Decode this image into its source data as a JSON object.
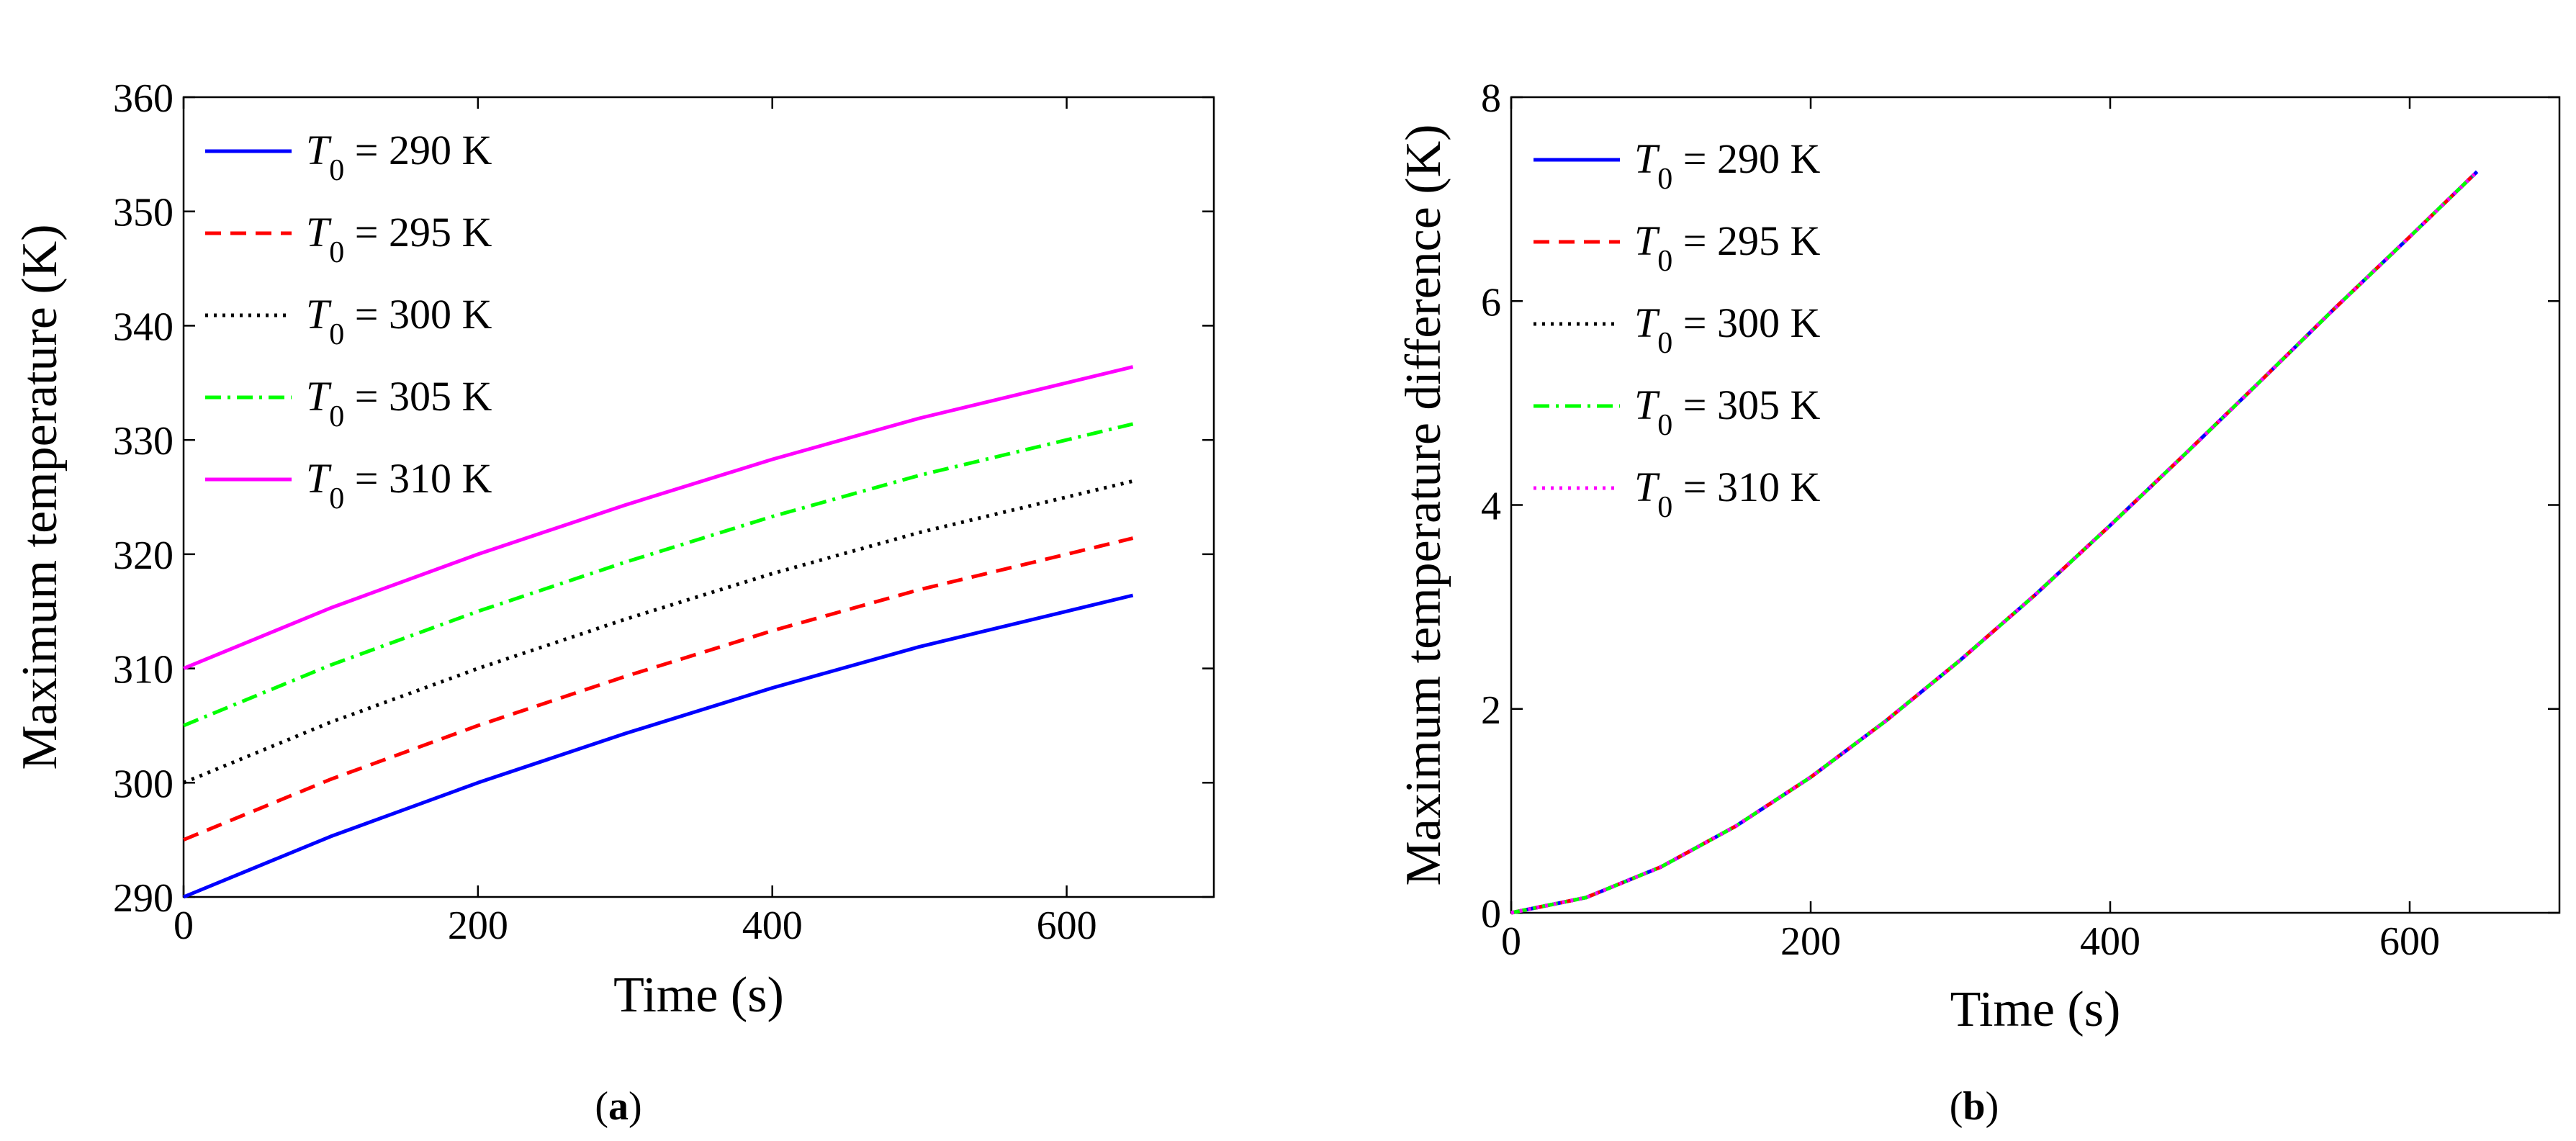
{
  "chart_data": [
    {
      "type": "line",
      "panel_label": "a",
      "title": "",
      "xlabel": "Time (s)",
      "ylabel": "Maximum temperature (K)",
      "xlim": [
        0,
        700
      ],
      "ylim": [
        290,
        360
      ],
      "xticks": [
        "0",
        "200",
        "400",
        "600"
      ],
      "xtick_values": [
        0,
        200,
        400,
        600
      ],
      "yticks": [
        "290",
        "300",
        "310",
        "320",
        "330",
        "340",
        "350",
        "360"
      ],
      "ytick_values": [
        290,
        300,
        310,
        320,
        330,
        340,
        350,
        360
      ],
      "grid": false,
      "legend_position": "top-left",
      "x": [
        0,
        100,
        200,
        300,
        400,
        500,
        600,
        645
      ],
      "series": [
        {
          "name": "290 K",
          "legend_symbol": "T",
          "legend_subscript": "0",
          "legend_eq": " = ",
          "color": "#0000ff",
          "style": "solid",
          "values": [
            290.0,
            295.3,
            300.0,
            304.3,
            308.3,
            311.9,
            315.0,
            316.4
          ]
        },
        {
          "name": "295 K",
          "legend_symbol": "T",
          "legend_subscript": "0",
          "legend_eq": " = ",
          "color": "#ff0000",
          "style": "dashed",
          "values": [
            295.0,
            300.3,
            305.0,
            309.3,
            313.3,
            316.9,
            320.0,
            321.4
          ]
        },
        {
          "name": "300 K",
          "legend_symbol": "T",
          "legend_subscript": "0",
          "legend_eq": " = ",
          "color": "#000000",
          "style": "dotted",
          "values": [
            300.0,
            305.3,
            310.0,
            314.3,
            318.3,
            321.9,
            325.0,
            326.4
          ]
        },
        {
          "name": "305 K",
          "legend_symbol": "T",
          "legend_subscript": "0",
          "legend_eq": " = ",
          "color": "#00ff00",
          "style": "dashdot",
          "values": [
            305.0,
            310.3,
            315.0,
            319.3,
            323.3,
            326.9,
            330.0,
            331.4
          ]
        },
        {
          "name": "310 K",
          "legend_symbol": "T",
          "legend_subscript": "0",
          "legend_eq": " = ",
          "color": "#ff00ff",
          "style": "solid",
          "values": [
            310.0,
            315.3,
            320.0,
            324.3,
            328.3,
            331.9,
            335.0,
            336.4
          ]
        }
      ]
    },
    {
      "type": "line",
      "panel_label": "b",
      "title": "",
      "xlabel": "Time (s)",
      "ylabel": "Maximum temperature difference (K)",
      "xlim": [
        0,
        700
      ],
      "ylim": [
        0,
        8
      ],
      "xticks": [
        "0",
        "200",
        "400",
        "600"
      ],
      "xtick_values": [
        0,
        200,
        400,
        600
      ],
      "yticks": [
        "0",
        "2",
        "4",
        "6",
        "8"
      ],
      "ytick_values": [
        0,
        2,
        4,
        6,
        8
      ],
      "grid": false,
      "legend_position": "top-left",
      "x": [
        0,
        50,
        100,
        150,
        200,
        250,
        300,
        350,
        400,
        450,
        500,
        550,
        600,
        645
      ],
      "series": [
        {
          "name": "290 K",
          "legend_symbol": "T",
          "legend_subscript": "0",
          "legend_eq": " = ",
          "color": "#0000ff",
          "style": "solid",
          "values": [
            0.0,
            0.15,
            0.45,
            0.85,
            1.33,
            1.88,
            2.48,
            3.12,
            3.8,
            4.5,
            5.21,
            5.93,
            6.63,
            7.27
          ]
        },
        {
          "name": "295 K",
          "legend_symbol": "T",
          "legend_subscript": "0",
          "legend_eq": " = ",
          "color": "#ff0000",
          "style": "dashed",
          "values": [
            0.0,
            0.15,
            0.45,
            0.85,
            1.33,
            1.88,
            2.48,
            3.12,
            3.8,
            4.5,
            5.21,
            5.93,
            6.63,
            7.27
          ]
        },
        {
          "name": "300 K",
          "legend_symbol": "T",
          "legend_subscript": "0",
          "legend_eq": " = ",
          "color": "#000000",
          "style": "dotted",
          "values": [
            0.0,
            0.15,
            0.45,
            0.85,
            1.33,
            1.88,
            2.48,
            3.12,
            3.8,
            4.5,
            5.21,
            5.93,
            6.63,
            7.27
          ]
        },
        {
          "name": "305 K",
          "legend_symbol": "T",
          "legend_subscript": "0",
          "legend_eq": " = ",
          "color": "#00ff00",
          "style": "dashdot",
          "values": [
            0.0,
            0.15,
            0.45,
            0.85,
            1.33,
            1.88,
            2.48,
            3.12,
            3.8,
            4.5,
            5.21,
            5.93,
            6.63,
            7.27
          ]
        },
        {
          "name": "310 K",
          "legend_symbol": "T",
          "legend_subscript": "0",
          "legend_eq": " = ",
          "color": "#ff00ff",
          "style": "dotted",
          "values": [
            0.0,
            0.15,
            0.45,
            0.85,
            1.33,
            1.88,
            2.48,
            3.12,
            3.8,
            4.5,
            5.21,
            5.93,
            6.63,
            7.27
          ]
        }
      ]
    }
  ],
  "captions": [
    {
      "open": "(",
      "letter": "a",
      "close": ")"
    },
    {
      "open": "(",
      "letter": "b",
      "close": ")"
    }
  ]
}
